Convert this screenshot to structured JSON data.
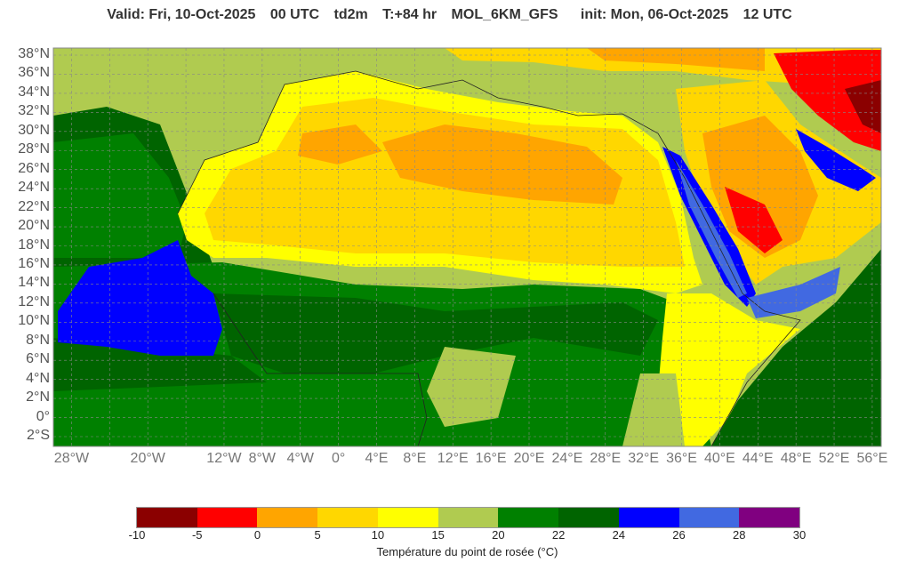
{
  "title": {
    "valid": "Valid: Fri, 10-Oct-2025",
    "valid_time": "00 UTC",
    "variable": "td2m",
    "lead": "T:+84 hr",
    "model": "MOL_6KM_GFS",
    "init": "init: Mon, 06-Oct-2025",
    "init_time": "12 UTC"
  },
  "lat_labels": [
    "38°N",
    "36°N",
    "34°N",
    "32°N",
    "30°N",
    "28°N",
    "26°N",
    "24°N",
    "22°N",
    "20°N",
    "18°N",
    "16°N",
    "14°N",
    "12°N",
    "10°N",
    "8°N",
    "6°N",
    "4°N",
    "2°N",
    "0°",
    "2°S"
  ],
  "lon_labels": [
    "28°W",
    "20°W",
    "12°W",
    "8°W",
    "4°W",
    "0°",
    "4°E",
    "8°E",
    "12°E",
    "16°E",
    "20°E",
    "24°E",
    "28°E",
    "32°E",
    "36°E",
    "40°E",
    "44°E",
    "48°E",
    "52°E",
    "56°E"
  ],
  "lon_values": [
    -28,
    -20,
    -12,
    -8,
    -4,
    0,
    4,
    8,
    12,
    16,
    20,
    24,
    28,
    32,
    36,
    40,
    44,
    48,
    52,
    56
  ],
  "colorbar": {
    "colors": [
      "#8b0000",
      "#ff0000",
      "#ffa500",
      "#ffd700",
      "#ffff00",
      "#b0cb50",
      "#008000",
      "#006400",
      "#0000ff",
      "#4169e1",
      "#800080"
    ],
    "ticks": [
      "-10",
      "-5",
      "0",
      "5",
      "10",
      "15",
      "20",
      "22",
      "24",
      "26",
      "28",
      "30"
    ],
    "label": "Température du point de rosée (°C)"
  }
}
